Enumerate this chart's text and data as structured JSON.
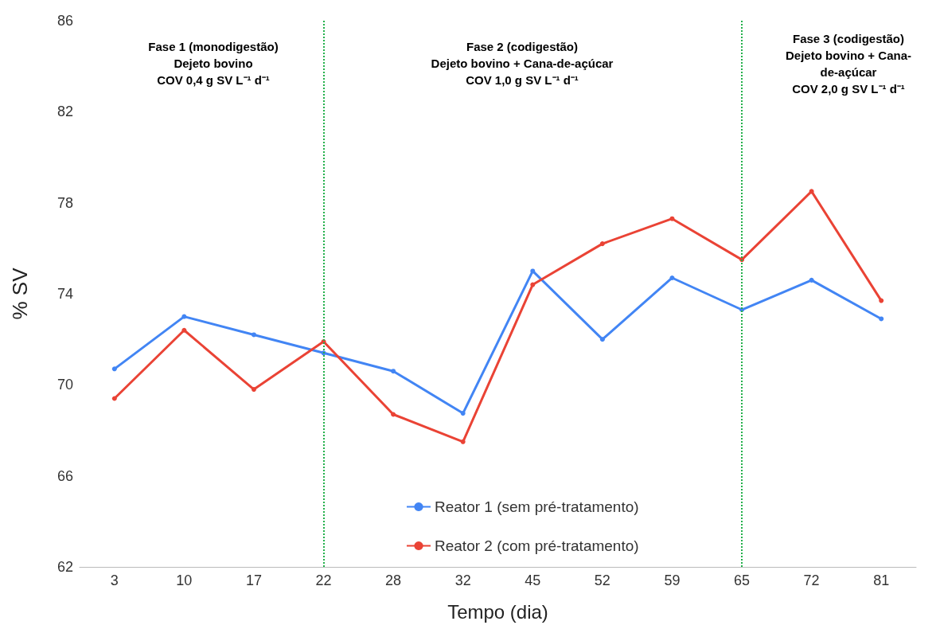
{
  "chart_data": {
    "type": "line",
    "xlabel": "Tempo (dia)",
    "ylabel": "% SV",
    "categories": [
      "3",
      "10",
      "17",
      "22",
      "28",
      "32",
      "45",
      "52",
      "59",
      "65",
      "72",
      "81"
    ],
    "series": [
      {
        "name": "Reator 1 (sem pré-tratamento)",
        "color": "#4285f4",
        "values": [
          70.7,
          73.0,
          72.2,
          71.4,
          70.6,
          68.75,
          75.0,
          72.0,
          74.7,
          73.3,
          74.6,
          72.9
        ]
      },
      {
        "name": "Reator 2 (com pré-tratamento)",
        "color": "#ea4335",
        "values": [
          69.4,
          72.4,
          69.8,
          71.9,
          68.7,
          67.5,
          74.4,
          76.2,
          77.3,
          75.5,
          78.5,
          73.7
        ]
      }
    ],
    "ylim": [
      62,
      86
    ],
    "yticks": [
      62,
      66,
      70,
      74,
      78,
      82,
      86
    ],
    "ref_lines": [
      {
        "axis": "x",
        "value": "22",
        "color": "#22b04a",
        "line_style": "dotted"
      },
      {
        "axis": "x",
        "value": "65",
        "color": "#22b04a",
        "line_style": "dotted"
      }
    ],
    "annotations": [
      "Fase 1 (monodigestão)\nDejeto bovino\nCOV 0,4 g SV L⁻¹ d⁻¹",
      "Fase 2 (codigestão)\nDejeto bovino + Cana-de-açúcar\nCOV 1,0 g SV L⁻¹ d⁻¹",
      "Fase 3 (codigestão)\nDejeto bovino + Cana-\nde-açúcar\nCOV 2,0 g SV L⁻¹ d⁻¹"
    ],
    "grid": false,
    "legend": "bottom",
    "marker": "circle",
    "line_style": "solid"
  }
}
